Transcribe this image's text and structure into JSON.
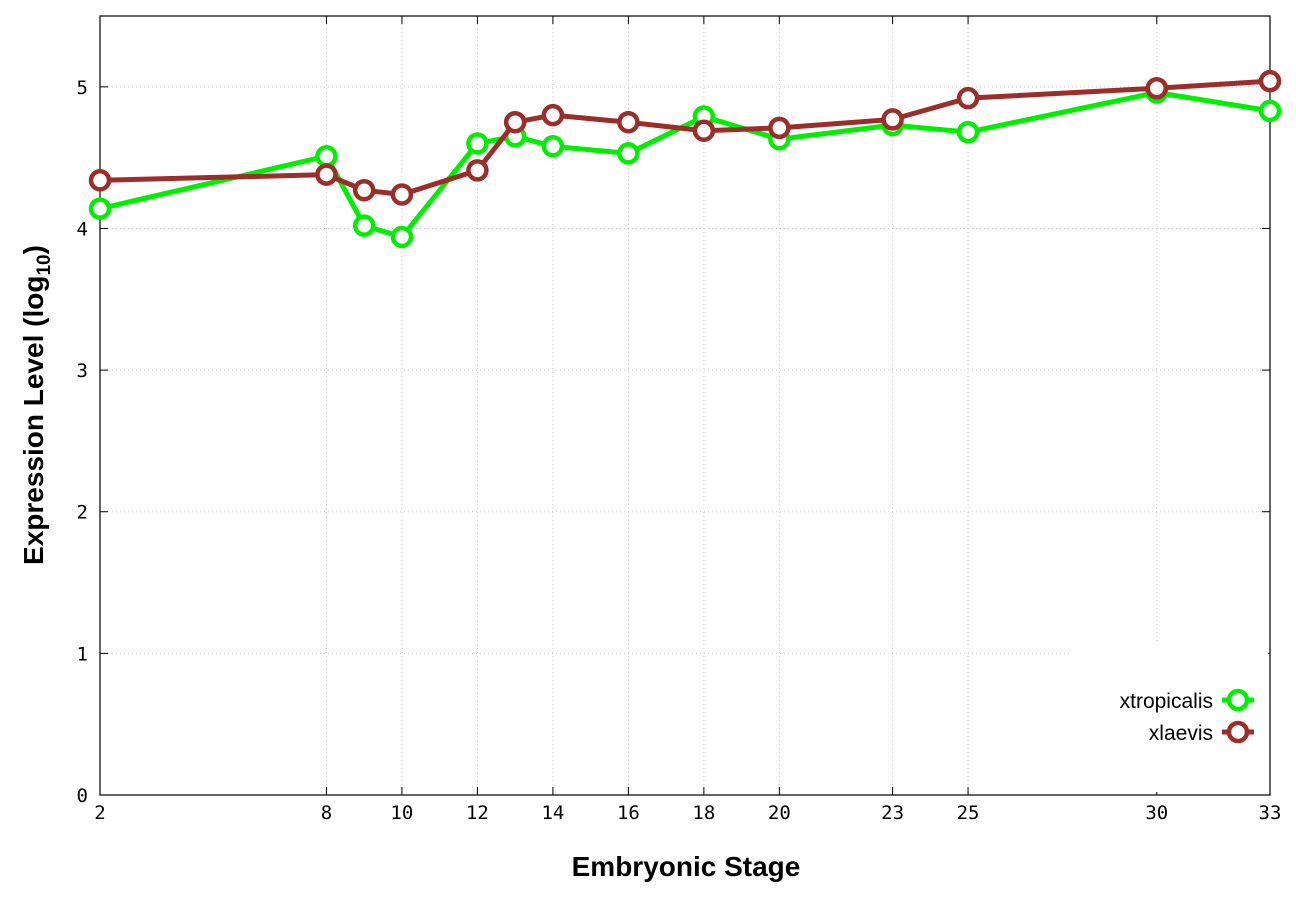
{
  "chart_data": {
    "type": "line",
    "xlabel": "Embryonic Stage",
    "ylabel": "Expression Level (log",
    "ylabel_subscript": "10",
    "ylabel_close": ")",
    "xlim": [
      2,
      33
    ],
    "ylim": [
      0,
      5.5
    ],
    "x_ticks": [
      2,
      8,
      10,
      12,
      14,
      16,
      18,
      20,
      23,
      25,
      30,
      33
    ],
    "x_tick_labels": [
      "2",
      "8",
      "10",
      "12",
      "14",
      "16",
      "18",
      "20",
      "23",
      "25",
      "30",
      "33"
    ],
    "y_ticks": [
      0,
      1,
      2,
      3,
      4,
      5
    ],
    "y_tick_labels": [
      "0",
      "1",
      "2",
      "3",
      "4",
      "5"
    ],
    "grid": true,
    "legend_position": "bottom-right",
    "x": [
      2,
      8,
      9,
      10,
      12,
      13,
      14,
      16,
      18,
      20,
      23,
      25,
      30,
      33
    ],
    "series": [
      {
        "name": "xtropicalis",
        "color": "#00ee00",
        "values": [
          4.14,
          4.51,
          4.02,
          3.94,
          4.6,
          4.65,
          4.58,
          4.53,
          4.79,
          4.63,
          4.73,
          4.68,
          4.96,
          4.83
        ]
      },
      {
        "name": "xlaevis",
        "color": "#9b2d2a",
        "values": [
          4.34,
          4.38,
          4.27,
          4.24,
          4.41,
          4.75,
          4.8,
          4.75,
          4.69,
          4.71,
          4.77,
          4.92,
          4.99,
          5.04
        ]
      }
    ]
  }
}
